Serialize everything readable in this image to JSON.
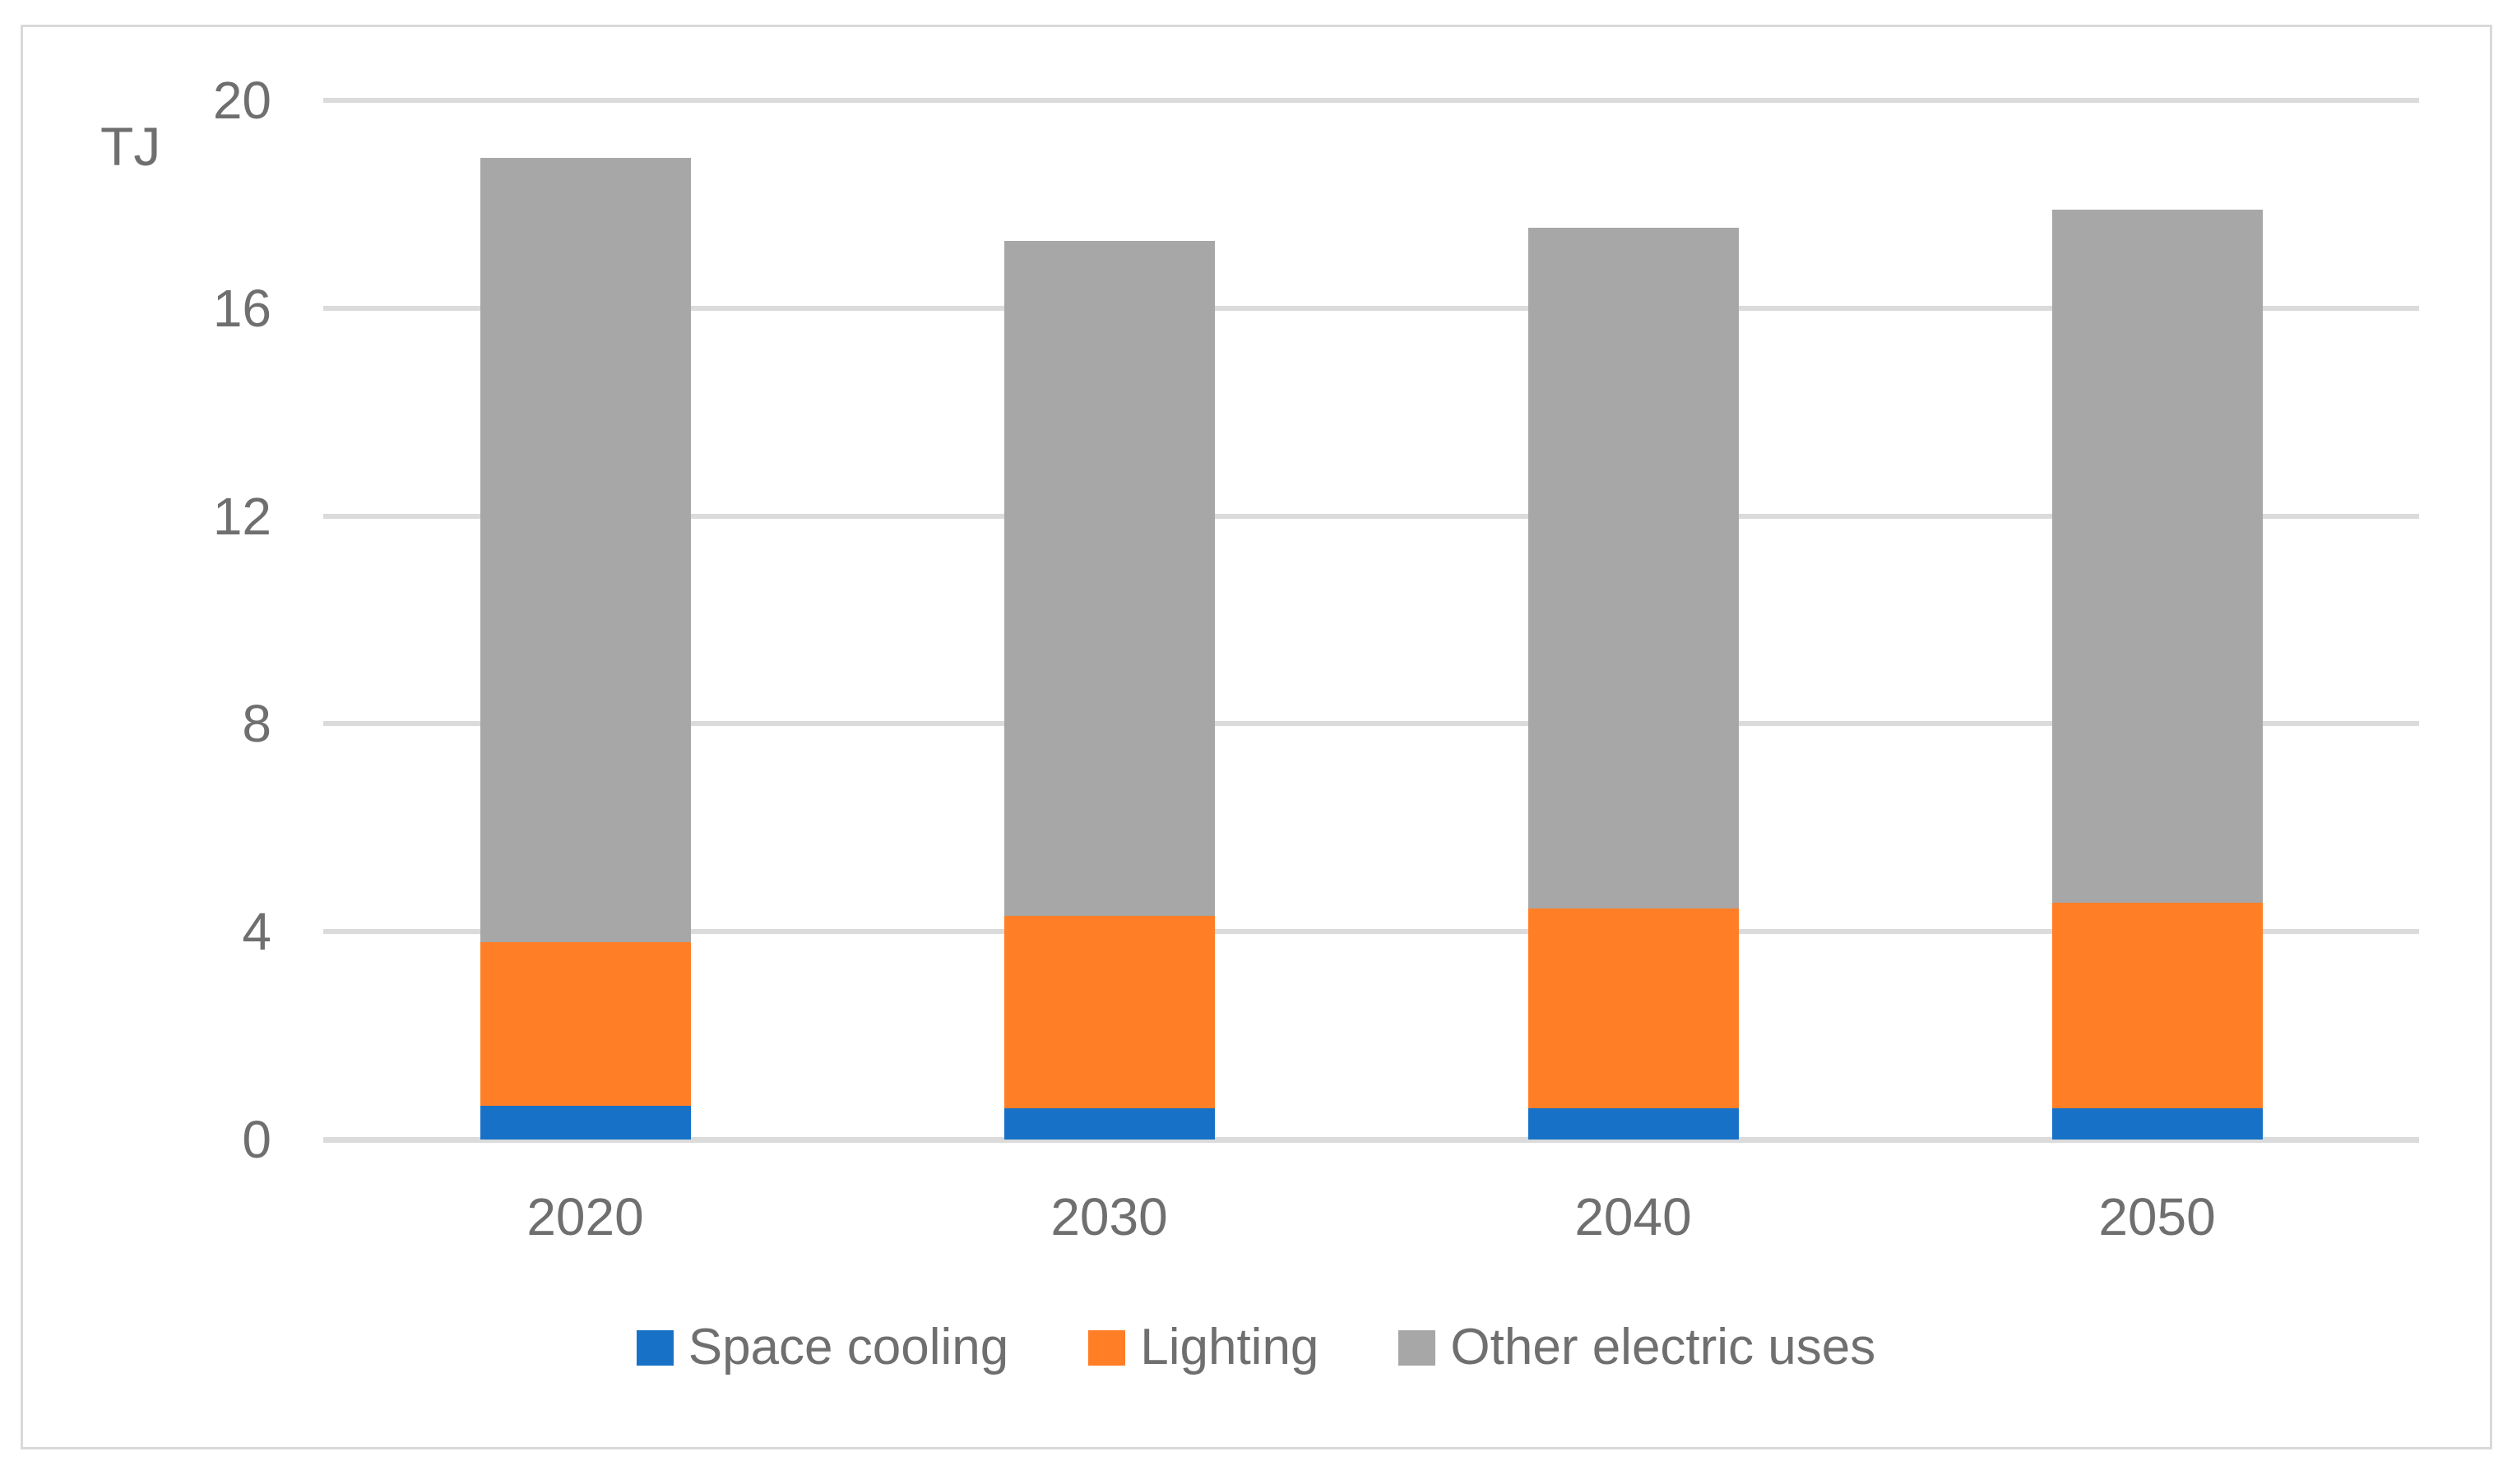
{
  "chart_data": {
    "type": "bar",
    "stacked": true,
    "title": "",
    "ylabel": "TJ",
    "xlabel": "",
    "categories": [
      "2020",
      "2030",
      "2040",
      "2050"
    ],
    "series": [
      {
        "name": "Space cooling",
        "color": "#1772c7",
        "values": [
          0.65,
          0.6,
          0.6,
          0.6
        ]
      },
      {
        "name": "Lighting",
        "color": "#ff7e26",
        "values": [
          3.15,
          3.7,
          3.85,
          3.95
        ]
      },
      {
        "name": "Other electric uses",
        "color": "#a7a7a7",
        "values": [
          15.1,
          13.0,
          13.1,
          13.35
        ]
      }
    ],
    "stack_totals": [
      18.9,
      17.3,
      17.55,
      17.9
    ],
    "yticks": [
      0,
      4,
      8,
      12,
      16,
      20
    ],
    "ylim": [
      0,
      20
    ],
    "grid": "horizontal",
    "legend_position": "bottom"
  },
  "colors": {
    "gridline": "#dbdbdb",
    "frame_border": "#d9d9d9",
    "text": "#6f6f6f",
    "background": "#ffffff"
  }
}
